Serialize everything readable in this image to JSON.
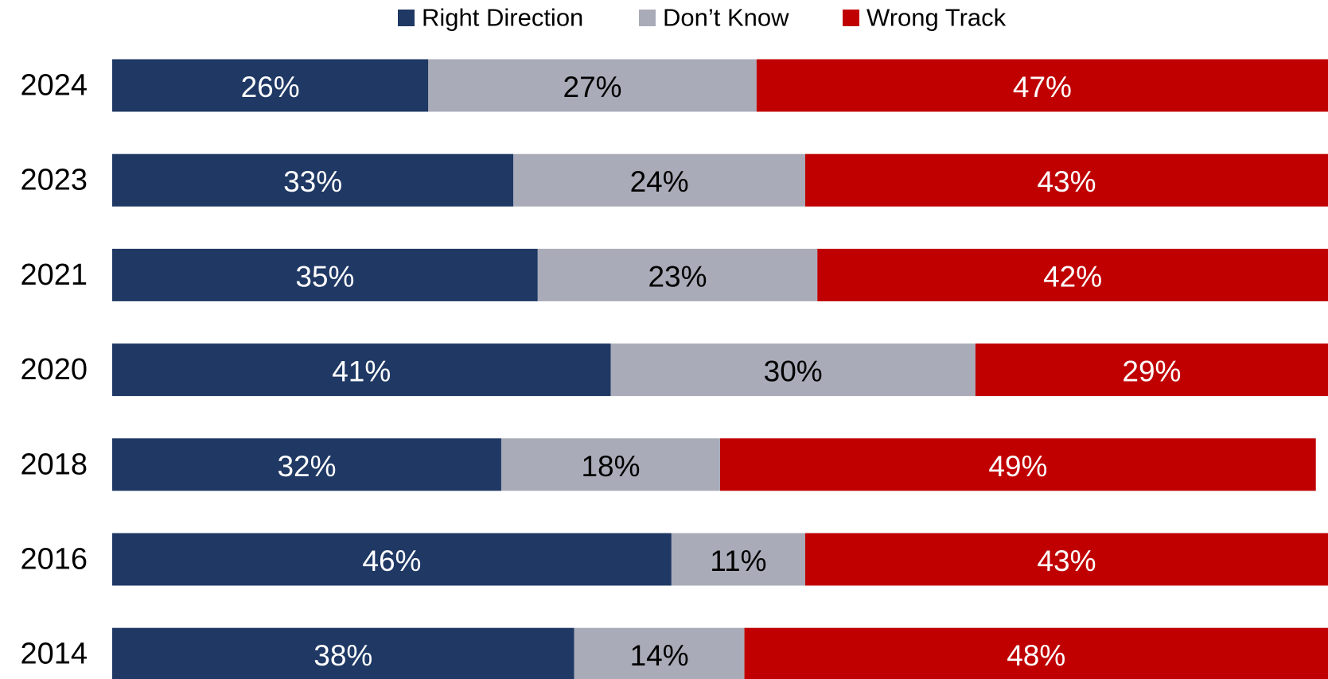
{
  "chart_data": {
    "type": "stacked-bar-horizontal",
    "categories": [
      "2024",
      "2023",
      "2021",
      "2020",
      "2018",
      "2016",
      "2014"
    ],
    "xlim": [
      0,
      100
    ],
    "legend": "top",
    "series": [
      {
        "name": "Right Direction",
        "color": "#1f3864",
        "label_color": "#ffffff",
        "values": [
          26,
          33,
          35,
          41,
          32,
          46,
          38
        ],
        "value_labels": [
          "26%",
          "33%",
          "35%",
          "41%",
          "32%",
          "46%",
          "38%"
        ]
      },
      {
        "name": "Don’t Know",
        "color": "#a9abb8",
        "label_color": "#000000",
        "values": [
          27,
          24,
          23,
          30,
          18,
          11,
          14
        ],
        "value_labels": [
          "27%",
          "24%",
          "23%",
          "30%",
          "18%",
          "11%",
          "14%"
        ]
      },
      {
        "name": "Wrong Track",
        "color": "#c00000",
        "label_color": "#ffffff",
        "values": [
          47,
          43,
          42,
          29,
          49,
          43,
          48
        ],
        "value_labels": [
          "47%",
          "43%",
          "42%",
          "29%",
          "49%",
          "43%",
          "48%"
        ]
      }
    ]
  }
}
